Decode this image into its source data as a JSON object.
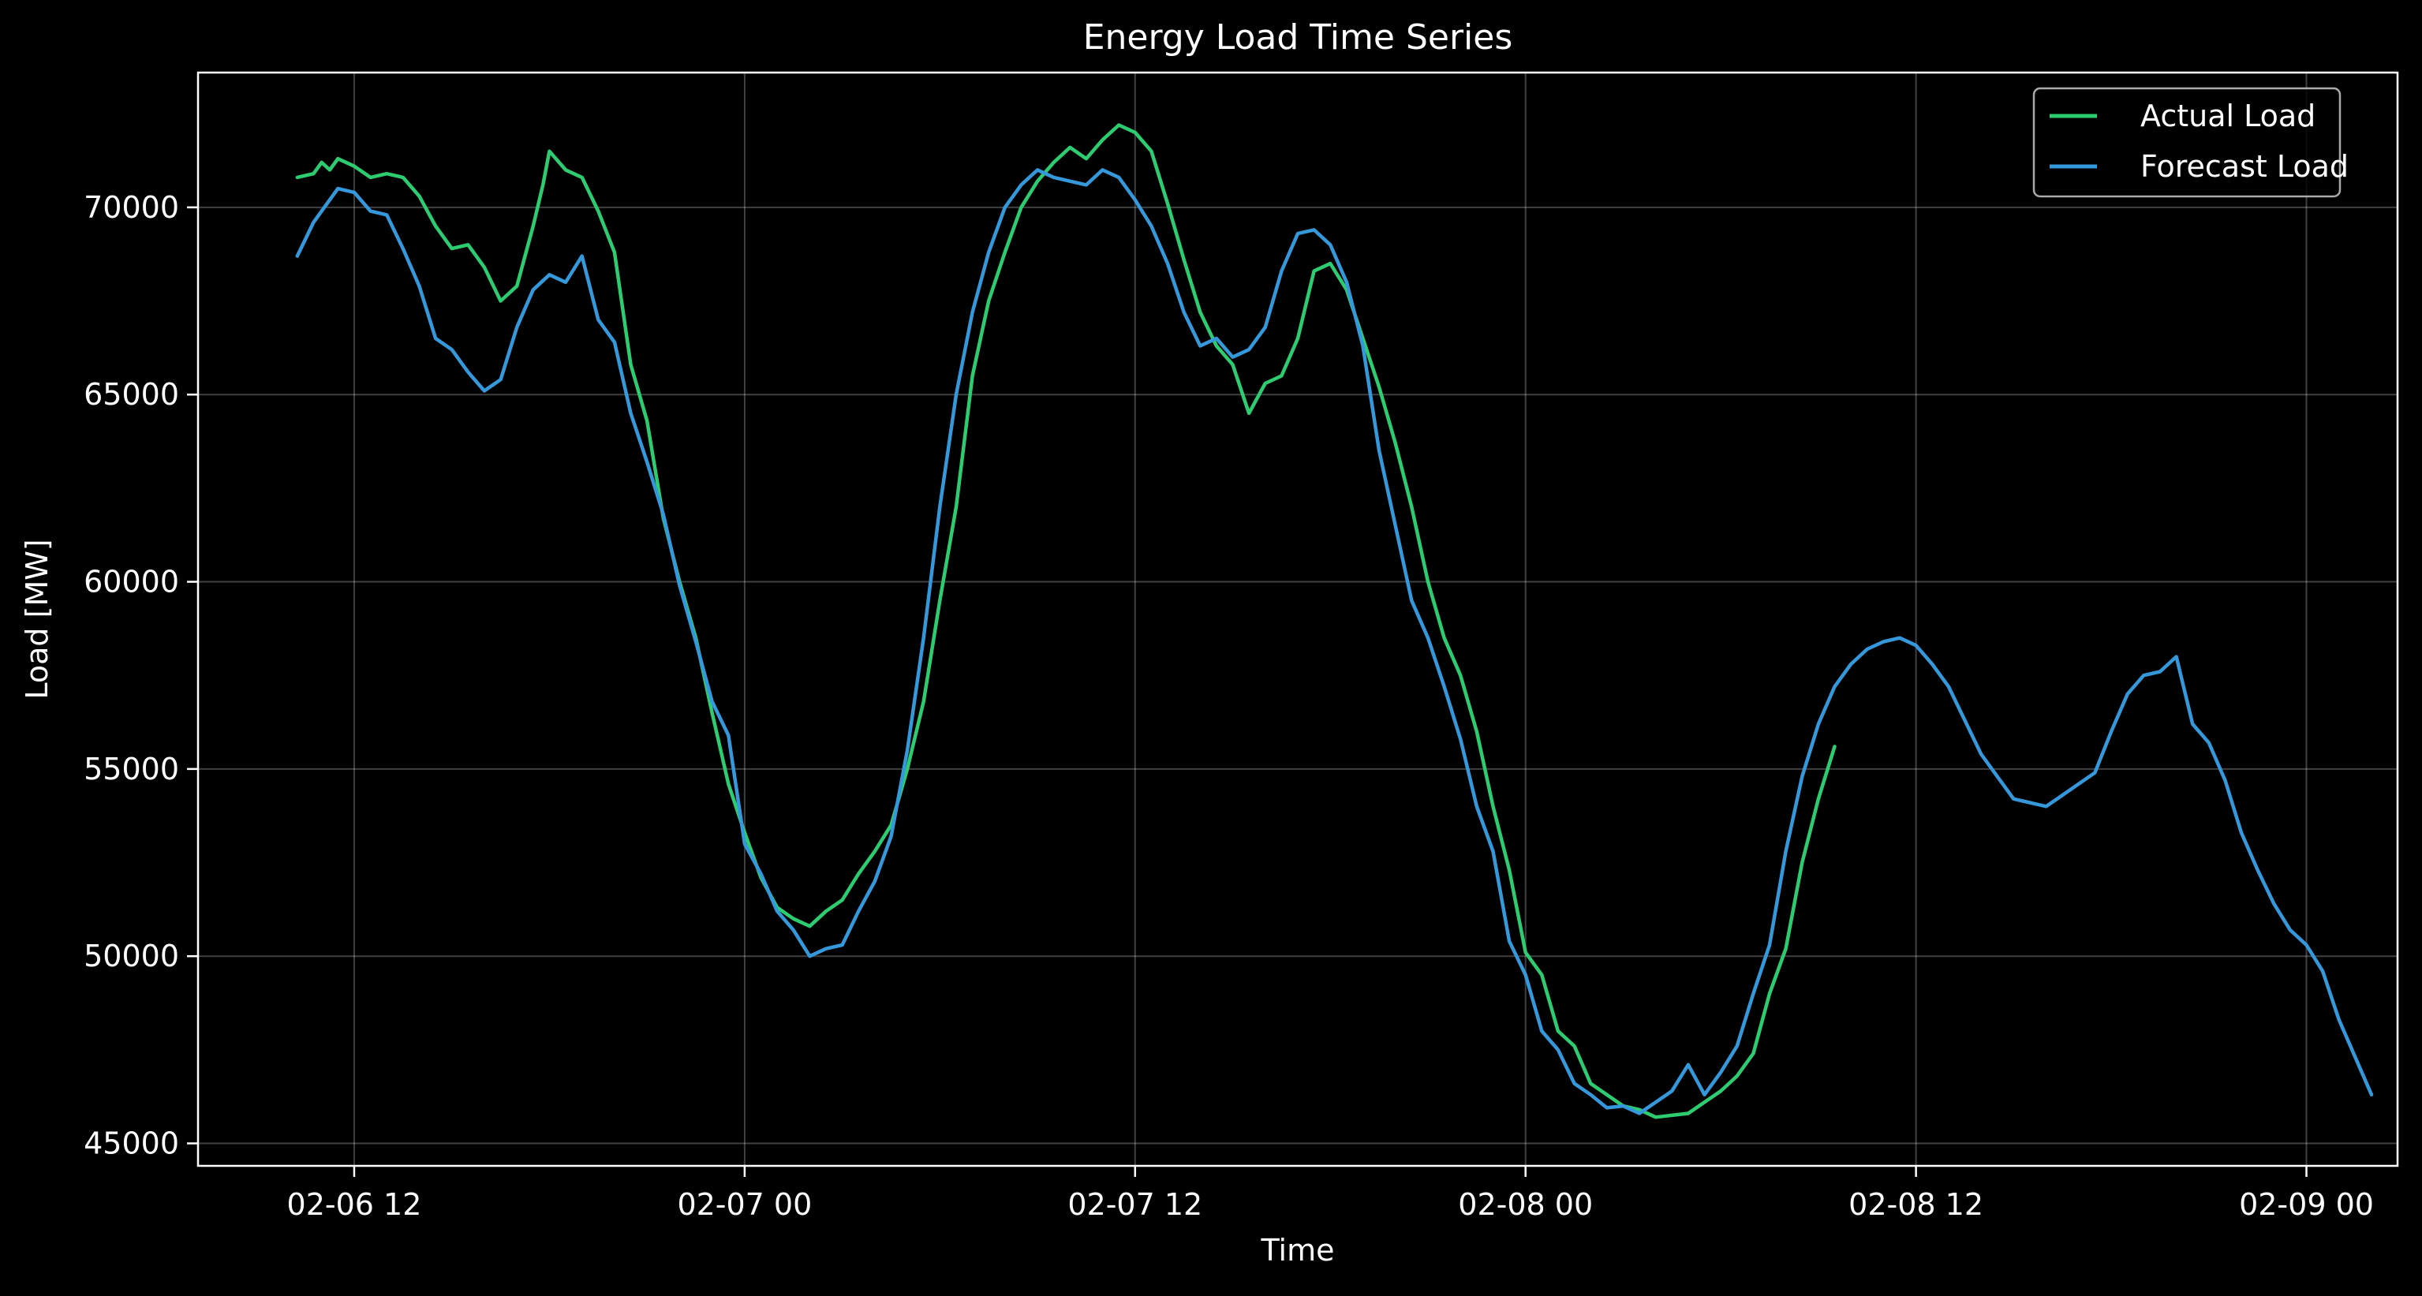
{
  "chart_data": {
    "type": "line",
    "title": "Energy Load Time Series",
    "xlabel": "Time",
    "ylabel": "Load [MW]",
    "x_unit": "hours",
    "x_ticks": [
      {
        "label": "02-06 12",
        "value": 0
      },
      {
        "label": "02-07 00",
        "value": 12
      },
      {
        "label": "02-07 12",
        "value": 24
      },
      {
        "label": "02-08 00",
        "value": 36
      },
      {
        "label": "02-08 12",
        "value": 48
      },
      {
        "label": "02-09 00",
        "value": 60
      }
    ],
    "y_ticks": [
      45000,
      50000,
      55000,
      60000,
      65000,
      70000
    ],
    "y_tick_labels": [
      "45000",
      "50000",
      "55000",
      "60000",
      "65000",
      "70000"
    ],
    "xlim": [
      -4.8,
      62.8
    ],
    "ylim": [
      44400,
      73600
    ],
    "grid": true,
    "legend_position": "top-right",
    "background_color": "#000000",
    "series": [
      {
        "name": "Actual Load",
        "color": "#2ecc71",
        "points": [
          [
            -1.75,
            70800
          ],
          [
            -1.25,
            70900
          ],
          [
            -1.0,
            71200
          ],
          [
            -0.75,
            71000
          ],
          [
            -0.5,
            71300
          ],
          [
            -0.25,
            71200
          ],
          [
            0.0,
            71100
          ],
          [
            0.5,
            70800
          ],
          [
            1.0,
            70900
          ],
          [
            1.5,
            70800
          ],
          [
            2.0,
            70300
          ],
          [
            2.5,
            69500
          ],
          [
            3.0,
            68900
          ],
          [
            3.5,
            69000
          ],
          [
            4.0,
            68400
          ],
          [
            4.5,
            67500
          ],
          [
            5.0,
            67900
          ],
          [
            5.5,
            69500
          ],
          [
            5.8,
            70600
          ],
          [
            6.0,
            71500
          ],
          [
            6.5,
            71000
          ],
          [
            7.0,
            70800
          ],
          [
            7.5,
            69900
          ],
          [
            8.0,
            68800
          ],
          [
            8.5,
            65800
          ],
          [
            9.0,
            64300
          ],
          [
            9.5,
            61700
          ],
          [
            10.0,
            60000
          ],
          [
            10.5,
            58500
          ],
          [
            11.0,
            56500
          ],
          [
            11.5,
            54600
          ],
          [
            12.0,
            53300
          ],
          [
            12.5,
            52100
          ],
          [
            13.0,
            51300
          ],
          [
            13.5,
            51000
          ],
          [
            14.0,
            50800
          ],
          [
            14.5,
            51200
          ],
          [
            15.0,
            51500
          ],
          [
            15.5,
            52200
          ],
          [
            16.0,
            52800
          ],
          [
            16.5,
            53500
          ],
          [
            17.0,
            55000
          ],
          [
            17.5,
            56800
          ],
          [
            18.0,
            59500
          ],
          [
            18.5,
            62000
          ],
          [
            19.0,
            65500
          ],
          [
            19.5,
            67500
          ],
          [
            20.0,
            68800
          ],
          [
            20.5,
            70000
          ],
          [
            21.0,
            70700
          ],
          [
            21.5,
            71200
          ],
          [
            22.0,
            71600
          ],
          [
            22.5,
            71300
          ],
          [
            23.0,
            71800
          ],
          [
            23.5,
            72200
          ],
          [
            24.0,
            72000
          ],
          [
            24.5,
            71500
          ],
          [
            25.0,
            70100
          ],
          [
            25.5,
            68600
          ],
          [
            26.0,
            67200
          ],
          [
            26.5,
            66300
          ],
          [
            27.0,
            65800
          ],
          [
            27.5,
            64500
          ],
          [
            28.0,
            65300
          ],
          [
            28.5,
            65500
          ],
          [
            29.0,
            66500
          ],
          [
            29.5,
            68300
          ],
          [
            30.0,
            68500
          ],
          [
            30.5,
            67800
          ],
          [
            31.0,
            66500
          ],
          [
            31.5,
            65200
          ],
          [
            32.0,
            63700
          ],
          [
            32.5,
            62000
          ],
          [
            33.0,
            60000
          ],
          [
            33.5,
            58500
          ],
          [
            34.0,
            57500
          ],
          [
            34.5,
            56000
          ],
          [
            35.0,
            54000
          ],
          [
            35.5,
            52300
          ],
          [
            36.0,
            50100
          ],
          [
            36.5,
            49500
          ],
          [
            37.0,
            48000
          ],
          [
            37.5,
            47600
          ],
          [
            38.0,
            46600
          ],
          [
            38.5,
            46300
          ],
          [
            39.0,
            46000
          ],
          [
            39.5,
            45900
          ],
          [
            40.0,
            45700
          ],
          [
            40.5,
            45750
          ],
          [
            41.0,
            45800
          ],
          [
            41.5,
            46100
          ],
          [
            42.0,
            46400
          ],
          [
            42.5,
            46800
          ],
          [
            43.0,
            47400
          ],
          [
            43.5,
            49000
          ],
          [
            44.0,
            50200
          ],
          [
            44.5,
            52500
          ],
          [
            45.0,
            54200
          ],
          [
            45.5,
            55600
          ]
        ]
      },
      {
        "name": "Forecast Load",
        "color": "#3498db",
        "points": [
          [
            -1.75,
            68700
          ],
          [
            -1.25,
            69600
          ],
          [
            -1.0,
            69900
          ],
          [
            -0.5,
            70500
          ],
          [
            0.0,
            70400
          ],
          [
            0.5,
            69900
          ],
          [
            1.0,
            69800
          ],
          [
            1.5,
            68900
          ],
          [
            2.0,
            67900
          ],
          [
            2.5,
            66500
          ],
          [
            3.0,
            66200
          ],
          [
            3.5,
            65600
          ],
          [
            4.0,
            65100
          ],
          [
            4.5,
            65400
          ],
          [
            5.0,
            66800
          ],
          [
            5.5,
            67800
          ],
          [
            6.0,
            68200
          ],
          [
            6.5,
            68000
          ],
          [
            7.0,
            68700
          ],
          [
            7.5,
            67000
          ],
          [
            8.0,
            66400
          ],
          [
            8.5,
            64500
          ],
          [
            9.0,
            63200
          ],
          [
            9.5,
            61800
          ],
          [
            10.0,
            59900
          ],
          [
            10.5,
            58400
          ],
          [
            11.0,
            56800
          ],
          [
            11.5,
            55900
          ],
          [
            12.0,
            53000
          ],
          [
            12.5,
            52200
          ],
          [
            13.0,
            51200
          ],
          [
            13.5,
            50700
          ],
          [
            14.0,
            50000
          ],
          [
            14.5,
            50200
          ],
          [
            15.0,
            50300
          ],
          [
            15.5,
            51200
          ],
          [
            16.0,
            52000
          ],
          [
            16.5,
            53200
          ],
          [
            17.0,
            55500
          ],
          [
            17.5,
            58500
          ],
          [
            18.0,
            62000
          ],
          [
            18.5,
            65000
          ],
          [
            19.0,
            67200
          ],
          [
            19.5,
            68800
          ],
          [
            20.0,
            70000
          ],
          [
            20.5,
            70600
          ],
          [
            21.0,
            71000
          ],
          [
            21.5,
            70800
          ],
          [
            22.0,
            70700
          ],
          [
            22.5,
            70600
          ],
          [
            23.0,
            71000
          ],
          [
            23.5,
            70800
          ],
          [
            24.0,
            70200
          ],
          [
            24.5,
            69500
          ],
          [
            25.0,
            68500
          ],
          [
            25.5,
            67200
          ],
          [
            26.0,
            66300
          ],
          [
            26.5,
            66500
          ],
          [
            27.0,
            66000
          ],
          [
            27.5,
            66200
          ],
          [
            28.0,
            66800
          ],
          [
            28.5,
            68300
          ],
          [
            29.0,
            69300
          ],
          [
            29.5,
            69400
          ],
          [
            30.0,
            69000
          ],
          [
            30.5,
            68000
          ],
          [
            31.0,
            66300
          ],
          [
            31.5,
            63500
          ],
          [
            32.0,
            61500
          ],
          [
            32.5,
            59500
          ],
          [
            33.0,
            58500
          ],
          [
            33.5,
            57200
          ],
          [
            34.0,
            55800
          ],
          [
            34.5,
            54000
          ],
          [
            35.0,
            52800
          ],
          [
            35.5,
            50400
          ],
          [
            36.0,
            49500
          ],
          [
            36.5,
            48000
          ],
          [
            37.0,
            47500
          ],
          [
            37.5,
            46600
          ],
          [
            38.0,
            46300
          ],
          [
            38.5,
            45950
          ],
          [
            39.0,
            46000
          ],
          [
            39.5,
            45800
          ],
          [
            40.0,
            46100
          ],
          [
            40.5,
            46400
          ],
          [
            41.0,
            47100
          ],
          [
            41.5,
            46300
          ],
          [
            42.0,
            46900
          ],
          [
            42.5,
            47600
          ],
          [
            43.0,
            49000
          ],
          [
            43.5,
            50300
          ],
          [
            44.0,
            52800
          ],
          [
            44.5,
            54800
          ],
          [
            45.0,
            56200
          ],
          [
            45.5,
            57200
          ],
          [
            46.0,
            57800
          ],
          [
            46.5,
            58200
          ],
          [
            47.0,
            58400
          ],
          [
            47.5,
            58500
          ],
          [
            48.0,
            58300
          ],
          [
            48.5,
            57800
          ],
          [
            49.0,
            57200
          ],
          [
            49.5,
            56300
          ],
          [
            50.0,
            55400
          ],
          [
            50.5,
            54800
          ],
          [
            51.0,
            54200
          ],
          [
            51.5,
            54100
          ],
          [
            52.0,
            54000
          ],
          [
            52.5,
            54300
          ],
          [
            53.0,
            54600
          ],
          [
            53.5,
            54900
          ],
          [
            54.0,
            56000
          ],
          [
            54.5,
            57000
          ],
          [
            55.0,
            57500
          ],
          [
            55.5,
            57600
          ],
          [
            56.0,
            58000
          ],
          [
            56.5,
            56200
          ],
          [
            57.0,
            55700
          ],
          [
            57.5,
            54700
          ],
          [
            58.0,
            53300
          ],
          [
            58.5,
            52300
          ],
          [
            59.0,
            51400
          ],
          [
            59.5,
            50700
          ],
          [
            60.0,
            50300
          ],
          [
            60.5,
            49600
          ],
          [
            61.0,
            48300
          ],
          [
            61.5,
            47300
          ],
          [
            62.0,
            46300
          ]
        ]
      }
    ]
  }
}
